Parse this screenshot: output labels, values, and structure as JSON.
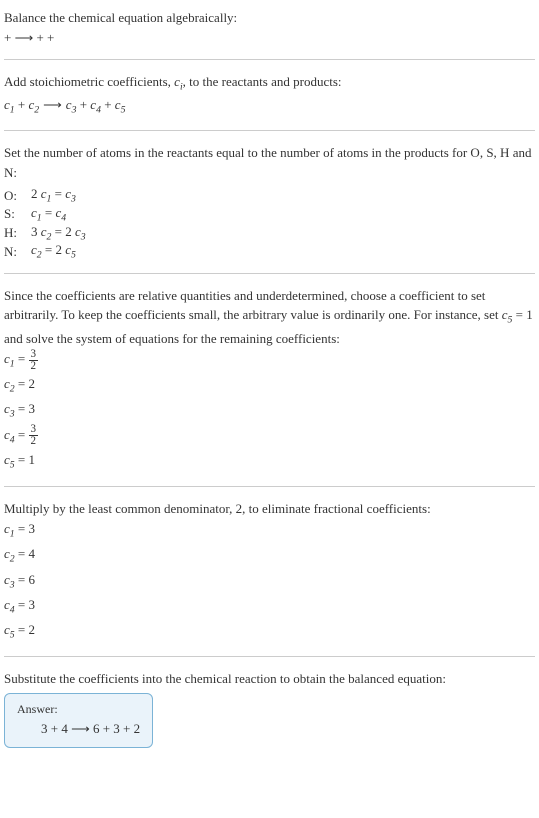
{
  "intro": {
    "line1": "Balance the chemical equation algebraically:",
    "reaction": " +  ⟶  +  + "
  },
  "stoich": {
    "instruction_prefix": "Add stoichiometric coefficients, ",
    "symbol": "c",
    "sub": "i",
    "instruction_suffix": ", to the reactants and products:",
    "expr_parts": {
      "c1": "c",
      "s1": "1",
      "plus1": " + ",
      "c2": "c",
      "s2": "2",
      "arrow": " ⟶ ",
      "c3": "c",
      "s3": "3",
      "plus2": " + ",
      "c4": "c",
      "s4": "4",
      "plus3": " + ",
      "c5": "c",
      "s5": "5"
    }
  },
  "atoms": {
    "instruction": "Set the number of atoms in the reactants equal to the number of atoms in the products for O, S, H and N:",
    "rows": [
      {
        "element": "O:",
        "lhs_coef": "2 ",
        "lvar": "c",
        "lsub": "1",
        "eq": " = ",
        "rvar": "c",
        "rsub": "3",
        "rhs_coef": ""
      },
      {
        "element": "S:",
        "lhs_coef": "",
        "lvar": "c",
        "lsub": "1",
        "eq": " = ",
        "rvar": "c",
        "rsub": "4",
        "rhs_coef": ""
      },
      {
        "element": "H:",
        "lhs_coef": "3 ",
        "lvar": "c",
        "lsub": "2",
        "eq": " = 2 ",
        "rvar": "c",
        "rsub": "3",
        "rhs_coef": ""
      },
      {
        "element": "N:",
        "lhs_coef": "",
        "lvar": "c",
        "lsub": "2",
        "eq": " = 2 ",
        "rvar": "c",
        "rsub": "5",
        "rhs_coef": ""
      }
    ]
  },
  "arbitrary": {
    "text_prefix": "Since the coefficients are relative quantities and underdetermined, choose a coefficient to set arbitrarily. To keep the coefficients small, the arbitrary value is ordinarily one. For instance, set ",
    "cvar": "c",
    "csub": "5",
    "cval": " = 1",
    "text_suffix": " and solve the system of equations for the remaining coefficients:",
    "c1": {
      "var": "c",
      "sub": "1",
      "eq": " = ",
      "num": "3",
      "den": "2"
    },
    "c2": {
      "var": "c",
      "sub": "2",
      "eq": " = 2"
    },
    "c3": {
      "var": "c",
      "sub": "3",
      "eq": " = 3"
    },
    "c4": {
      "var": "c",
      "sub": "4",
      "eq": " = ",
      "num": "3",
      "den": "2"
    },
    "c5": {
      "var": "c",
      "sub": "5",
      "eq": " = 1"
    }
  },
  "multiply": {
    "instruction": "Multiply by the least common denominator, 2, to eliminate fractional coefficients:",
    "c1": {
      "var": "c",
      "sub": "1",
      "eq": " = 3"
    },
    "c2": {
      "var": "c",
      "sub": "2",
      "eq": " = 4"
    },
    "c3": {
      "var": "c",
      "sub": "3",
      "eq": " = 6"
    },
    "c4": {
      "var": "c",
      "sub": "4",
      "eq": " = 3"
    },
    "c5": {
      "var": "c",
      "sub": "5",
      "eq": " = 2"
    }
  },
  "substitute": {
    "instruction": "Substitute the coefficients into the chemical reaction to obtain the balanced equation:"
  },
  "answer": {
    "label": "Answer:",
    "equation": "3  + 4  ⟶ 6  + 3  + 2 "
  },
  "colors": {
    "text": "#333333",
    "divider": "#cccccc",
    "answer_border": "#7bb3d6",
    "answer_bg": "#eaf3fa"
  }
}
